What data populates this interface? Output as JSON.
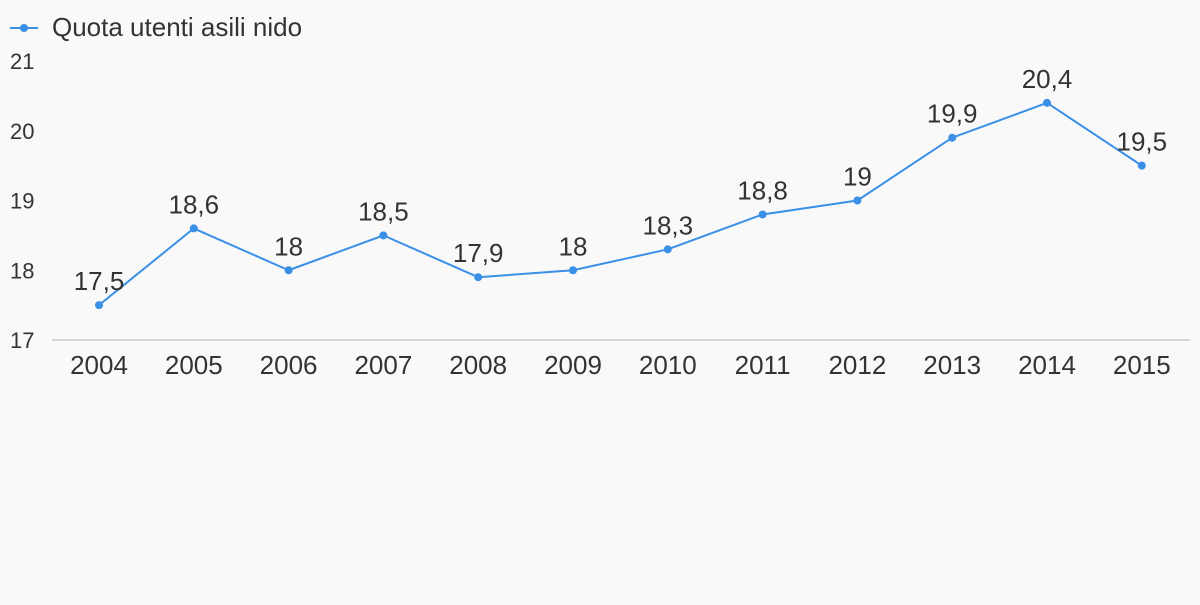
{
  "chart_data": {
    "type": "line",
    "title": "",
    "xlabel": "",
    "ylabel": "",
    "categories": [
      "2004",
      "2005",
      "2006",
      "2007",
      "2008",
      "2009",
      "2010",
      "2011",
      "2012",
      "2013",
      "2014",
      "2015"
    ],
    "series": [
      {
        "name": "Quota utenti asili nido",
        "values": [
          17.5,
          18.6,
          18,
          18.5,
          17.9,
          18,
          18.3,
          18.8,
          19,
          19.9,
          20.4,
          19.5
        ],
        "labels": [
          "17,5",
          "18,6",
          "18",
          "18,5",
          "17,9",
          "18",
          "18,3",
          "18,8",
          "19",
          "19,9",
          "20,4",
          "19,5"
        ],
        "color": "#3a8fe6"
      }
    ],
    "ylim": [
      17,
      21
    ],
    "yticks": [
      "17",
      "18",
      "19",
      "20",
      "21"
    ],
    "legend": "top-left",
    "grid": false
  },
  "colors": {
    "line": "#3a8fe6",
    "axis": "#d6d6d6",
    "text": "#333333",
    "background": "#f9f9fa"
  }
}
